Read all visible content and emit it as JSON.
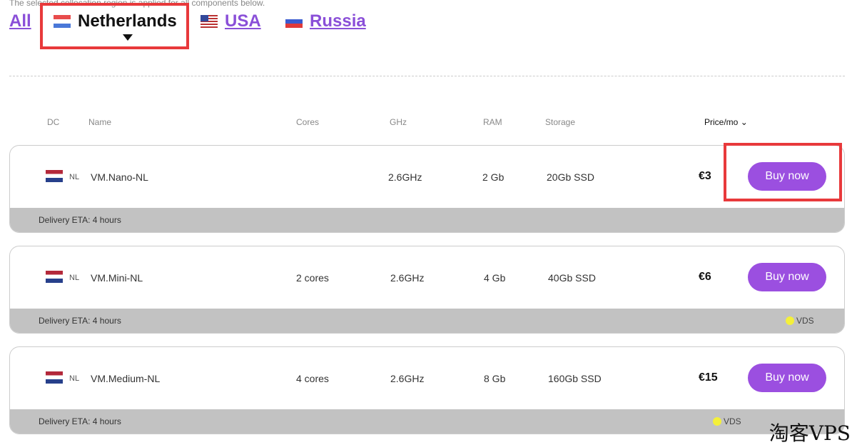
{
  "note": "The selected collocation region is applied for all components below.",
  "tabs": [
    {
      "label": "All",
      "flag": null
    },
    {
      "label": "Netherlands",
      "flag": "nl"
    },
    {
      "label": "USA",
      "flag": "us"
    },
    {
      "label": "Russia",
      "flag": "ru"
    }
  ],
  "active_tab": "Netherlands",
  "headers": {
    "dc": "DC",
    "name": "Name",
    "cores": "Cores",
    "ghz": "GHz",
    "ram": "RAM",
    "storage": "Storage",
    "price": "Price/mo"
  },
  "products": [
    {
      "dc": "NL",
      "name": "VM.Nano-NL",
      "cores": "",
      "ghz": "2.6GHz",
      "ram": "2 Gb",
      "storage": "20Gb SSD",
      "price": "€3",
      "button": "Buy now",
      "eta": "Delivery ETA:  4 hours",
      "badge": ""
    },
    {
      "dc": "NL",
      "name": "VM.Mini-NL",
      "cores": "2 cores",
      "ghz": "2.6GHz",
      "ram": "4 Gb",
      "storage": "40Gb SSD",
      "price": "€6",
      "button": "Buy now",
      "eta": "Delivery ETA:  4 hours",
      "badge": "VDS"
    },
    {
      "dc": "NL",
      "name": "VM.Medium-NL",
      "cores": "4 cores",
      "ghz": "2.6GHz",
      "ram": "8 Gb",
      "storage": "160Gb SSD",
      "price": "€15",
      "button": "Buy now",
      "eta": "Delivery ETA:  4 hours",
      "badge": "VDS"
    }
  ],
  "colors": {
    "accent": "#9b4fe0",
    "highlight": "#e8393b",
    "badge_dot": "#f4f03a"
  },
  "watermark": "淘客VPS"
}
